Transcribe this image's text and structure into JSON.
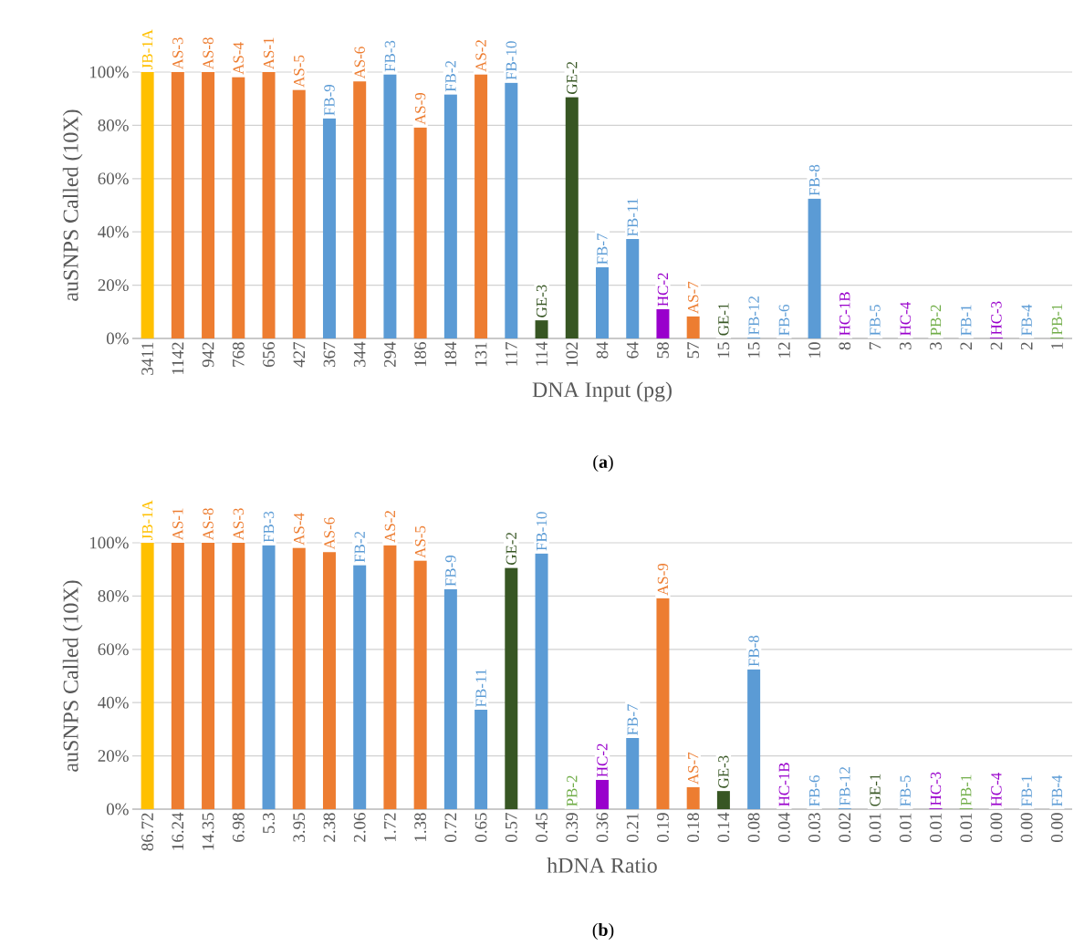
{
  "chart_data": [
    {
      "type": "bar",
      "xlabel": "DNA Input (pg)",
      "ylabel": "auSNPS Called (10X)",
      "annotations": [
        "(**a**)"
      ],
      "categories": [
        "3411",
        "1142",
        "942",
        "768",
        "656",
        "427",
        "367",
        "344",
        "294",
        "186",
        "184",
        "131",
        "117",
        "114",
        "102",
        "84",
        "64",
        "58",
        "57",
        "15",
        "15",
        "12",
        "10",
        "8",
        "7",
        "3",
        "3",
        "2",
        "2",
        "2",
        "1"
      ],
      "values": [
        100,
        100,
        100,
        98.1,
        100,
        93.3,
        82.6,
        96.5,
        99.1,
        79.2,
        91.6,
        99.1,
        96.0,
        6.8,
        90.6,
        26.7,
        37.3,
        11.0,
        8.3,
        0,
        0.3,
        0,
        52.5,
        0,
        0,
        0,
        0,
        0,
        0.3,
        0,
        0.3
      ],
      "colors": [
        "#ffc000",
        "#ed7d31",
        "#ed7d31",
        "#ed7d31",
        "#ed7d31",
        "#ed7d31",
        "#5b9bd5",
        "#ed7d31",
        "#5b9bd5",
        "#ed7d31",
        "#5b9bd5",
        "#ed7d31",
        "#5b9bd5",
        "#375623",
        "#375623",
        "#5b9bd5",
        "#5b9bd5",
        "#9900cc",
        "#ed7d31",
        "#375623",
        "#5b9bd5",
        "#5b9bd5",
        "#5b9bd5",
        "#9900cc",
        "#5b9bd5",
        "#9900cc",
        "#70ad47",
        "#5b9bd5",
        "#9900cc",
        "#5b9bd5",
        "#70ad47"
      ],
      "value_labels": [
        "JB-1A",
        "AS-3",
        "AS-8",
        "AS-4",
        "AS-1",
        "AS-5",
        "FB-9",
        "AS-6",
        "FB-3",
        "AS-9",
        "FB-2",
        "AS-2",
        "FB-10",
        "GE-3",
        "GE-2",
        "FB-7",
        "FB-11",
        "HC-2",
        "AS-7",
        "GE-1",
        "FB-12",
        "FB-6",
        "FB-8",
        "HC-1B",
        "FB-5",
        "HC-4",
        "PB-2",
        "FB-1",
        "HC-3",
        "FB-4",
        "PB-1"
      ],
      "ylim": [
        0,
        100
      ],
      "yticks": [
        {
          "value": 0,
          "label": "0%"
        },
        {
          "value": 20,
          "label": "20%"
        },
        {
          "value": 40,
          "label": "40%"
        },
        {
          "value": 60,
          "label": "60%"
        },
        {
          "value": 80,
          "label": "80%"
        },
        {
          "value": 100,
          "label": "100%"
        }
      ],
      "grid": "y"
    },
    {
      "type": "bar",
      "xlabel": "hDNA Ratio",
      "ylabel": "auSNPS Called (10X)",
      "annotations": [
        "(**b**)"
      ],
      "categories": [
        "86.72",
        "16.24",
        "14.35",
        "6.98",
        "5.3",
        "3.95",
        "2.38",
        "2.06",
        "1.72",
        "1.38",
        "0.72",
        "0.65",
        "0.57",
        "0.45",
        "0.39",
        "0.36",
        "0.21",
        "0.19",
        "0.18",
        "0.14",
        "0.08",
        "0.04",
        "0.03",
        "0.02",
        "0.01",
        "0.01",
        "0.01",
        "0.01",
        "0.00",
        "0.00",
        "0.00"
      ],
      "values": [
        100,
        100,
        100,
        100,
        99.1,
        98.1,
        96.5,
        91.6,
        99.1,
        93.3,
        82.6,
        37.3,
        90.6,
        96.0,
        0,
        11.0,
        26.7,
        79.2,
        8.3,
        6.8,
        52.5,
        0,
        0,
        0.3,
        0,
        0,
        0.3,
        0.3,
        0,
        0,
        0
      ],
      "colors": [
        "#ffc000",
        "#ed7d31",
        "#ed7d31",
        "#ed7d31",
        "#5b9bd5",
        "#ed7d31",
        "#ed7d31",
        "#5b9bd5",
        "#ed7d31",
        "#ed7d31",
        "#5b9bd5",
        "#5b9bd5",
        "#375623",
        "#5b9bd5",
        "#70ad47",
        "#9900cc",
        "#5b9bd5",
        "#ed7d31",
        "#ed7d31",
        "#375623",
        "#5b9bd5",
        "#9900cc",
        "#5b9bd5",
        "#5b9bd5",
        "#375623",
        "#5b9bd5",
        "#9900cc",
        "#70ad47",
        "#9900cc",
        "#5b9bd5",
        "#5b9bd5"
      ],
      "value_labels": [
        "JB-1A",
        "AS-1",
        "AS-8",
        "AS-3",
        "FB-3",
        "AS-4",
        "AS-6",
        "FB-2",
        "AS-2",
        "AS-5",
        "FB-9",
        "FB-11",
        "GE-2",
        "FB-10",
        "PB-2",
        "HC-2",
        "FB-7",
        "AS-9",
        "AS-7",
        "GE-3",
        "FB-8",
        "HC-1B",
        "FB-6",
        "FB-12",
        "GE-1",
        "FB-5",
        "HC-3",
        "PB-1",
        "HC-4",
        "FB-1",
        "FB-4"
      ],
      "ylim": [
        0,
        100
      ],
      "yticks": [
        {
          "value": 0,
          "label": "0%"
        },
        {
          "value": 20,
          "label": "20%"
        },
        {
          "value": 40,
          "label": "40%"
        },
        {
          "value": 60,
          "label": "60%"
        },
        {
          "value": 80,
          "label": "80%"
        },
        {
          "value": 100,
          "label": "100%"
        }
      ],
      "grid": "y"
    }
  ]
}
